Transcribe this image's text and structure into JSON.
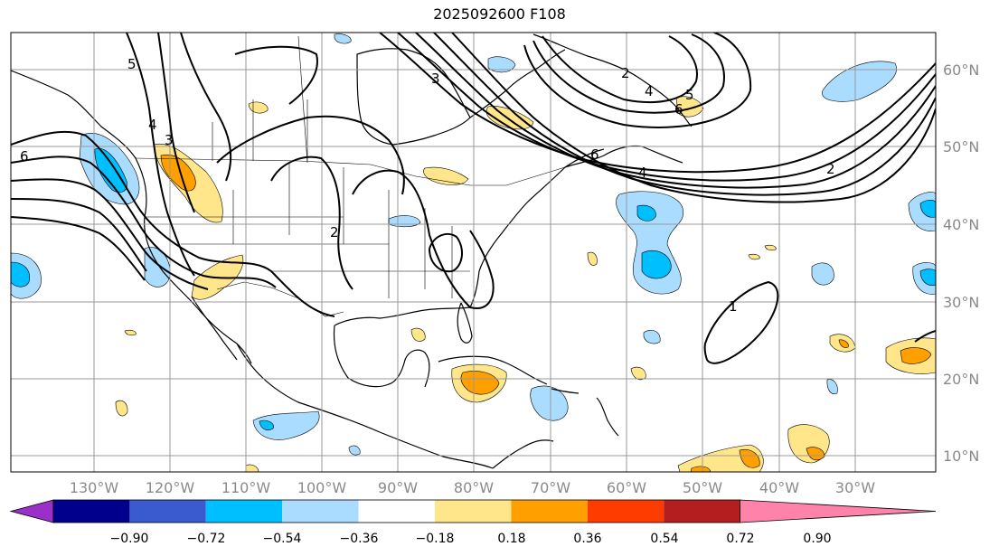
{
  "title": "2025092600 F108",
  "lon_labels": [
    "130°W",
    "120°W",
    "110°W",
    "100°W",
    "90°W",
    "80°W",
    "70°W",
    "60°W",
    "50°W",
    "40°W",
    "30°W"
  ],
  "lat_labels": [
    "60°N",
    "50°N",
    "40°N",
    "30°N",
    "20°N",
    "10°N"
  ],
  "colorbar": {
    "ticks": [
      "−0.90",
      "−0.72",
      "−0.54",
      "−0.36",
      "−0.18",
      "0.18",
      "0.36",
      "0.54",
      "0.72",
      "0.90"
    ],
    "colors": [
      "#9b30c8",
      "#00008c",
      "#3a5bd0",
      "#00bfff",
      "#aadcff",
      "#ffffff",
      "#ffe68a",
      "#ffa000",
      "#ff3c00",
      "#b41e1e",
      "#ff82aa"
    ]
  },
  "contour_labels": [
    {
      "text": "6",
      "near": "west coast Canada"
    },
    {
      "text": "5",
      "near": "Yukon"
    },
    {
      "text": "4",
      "near": "British Columbia"
    },
    {
      "text": "3",
      "near": "Alberta"
    },
    {
      "text": "2",
      "near": "Colorado"
    },
    {
      "text": "3",
      "near": "Hudson Bay"
    },
    {
      "text": "2",
      "near": "Greenland"
    },
    {
      "text": "4",
      "near": "Greenland"
    },
    {
      "text": "5",
      "near": "Greenland"
    },
    {
      "text": "6",
      "near": "Labrador Sea"
    },
    {
      "text": "6",
      "near": "Newfoundland"
    },
    {
      "text": "4",
      "near": "Newfoundland"
    },
    {
      "text": "2",
      "near": "North Atlantic"
    },
    {
      "text": "1",
      "near": "Central Atlantic"
    }
  ]
}
